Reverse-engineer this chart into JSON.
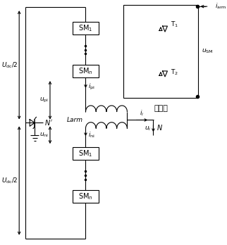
{
  "fig_width": 3.22,
  "fig_height": 3.48,
  "dpi": 100,
  "bg_color": "#ffffff",
  "line_color": "#000000",
  "lw": 0.8,
  "labels": {
    "SM1_top": "SM$_1$",
    "SMn_top": "SM$_n$",
    "SM1_bot": "SM$_1$",
    "SMn_bot": "SM$_n$",
    "Udc_top": "$U_{\\rm dc}$/2",
    "Udc_bot": "$U_{\\rm dc}$/2",
    "u_pi": "$u_{\\rm pi}$",
    "u_ni": "$u_{\\rm ni}$",
    "i_pi": "$i_{\\rm pi}$",
    "i_ni": "$i_{\\rm ni}$",
    "Larm": "$Larm$",
    "i_i": "$i_i$",
    "u_i": "$u_i$",
    "N_load": "$N$",
    "N_prime": "$N'$",
    "T1": "T$_1$",
    "T2": "T$_2$",
    "i_arm": "$i_{\\rm arm}$",
    "u_SM": "$u_{\\rm SM}$",
    "submodule": "子模塊"
  }
}
